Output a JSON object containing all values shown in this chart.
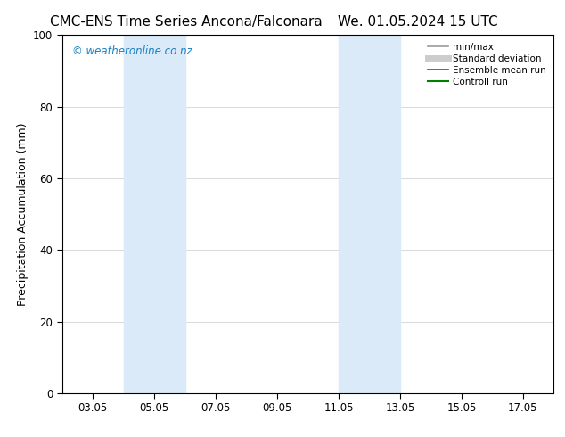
{
  "title_left": "CMC-ENS Time Series Ancona/Falconara",
  "title_right": "We. 01.05.2024 15 UTC",
  "ylabel": "Precipitation Accumulation (mm)",
  "watermark": "© weatheronline.co.nz",
  "watermark_color": "#1a7fc1",
  "xlim_left": 2.0,
  "xlim_right": 18.0,
  "ylim_bottom": 0,
  "ylim_top": 100,
  "yticks": [
    0,
    20,
    40,
    60,
    80,
    100
  ],
  "xtick_labels": [
    "03.05",
    "05.05",
    "07.05",
    "09.05",
    "11.05",
    "13.05",
    "15.05",
    "17.05"
  ],
  "xtick_positions": [
    3,
    5,
    7,
    9,
    11,
    13,
    15,
    17
  ],
  "shade_regions": [
    {
      "x_start": 4.0,
      "x_end": 6.0,
      "color": "#daeaf8"
    },
    {
      "x_start": 11.0,
      "x_end": 13.0,
      "color": "#daeaf8"
    }
  ],
  "legend_items": [
    {
      "label": "min/max",
      "color": "#999999",
      "linewidth": 1.2,
      "linestyle": "-"
    },
    {
      "label": "Standard deviation",
      "color": "#cccccc",
      "linewidth": 5,
      "linestyle": "-"
    },
    {
      "label": "Ensemble mean run",
      "color": "#ff0000",
      "linewidth": 1.2,
      "linestyle": "-"
    },
    {
      "label": "Controll run",
      "color": "#008000",
      "linewidth": 1.5,
      "linestyle": "-"
    }
  ],
  "background_color": "#ffffff",
  "plot_bg_color": "#ffffff",
  "title_fontsize": 11,
  "axis_fontsize": 9,
  "tick_fontsize": 8.5,
  "legend_fontsize": 7.5,
  "watermark_fontsize": 8.5
}
